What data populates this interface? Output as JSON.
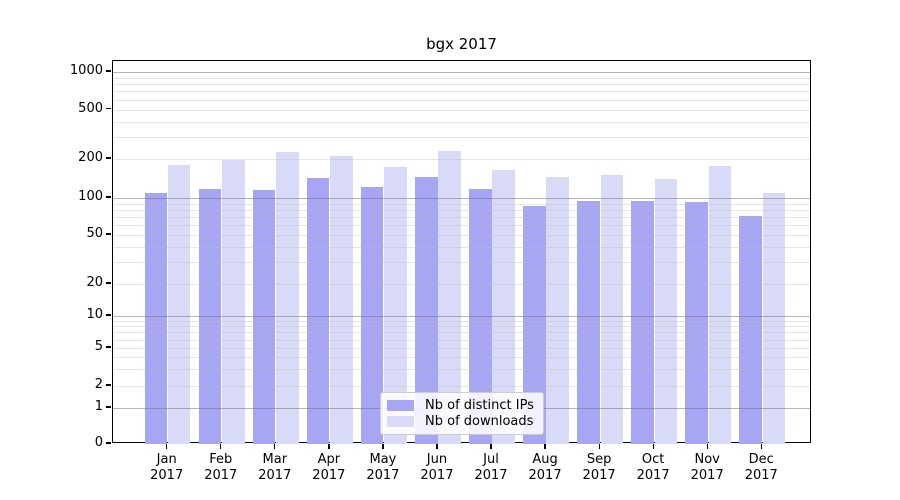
{
  "chart_data": {
    "type": "bar",
    "title": "bgx 2017",
    "categories": [
      "Jan",
      "Feb",
      "Mar",
      "Apr",
      "May",
      "Jun",
      "Jul",
      "Aug",
      "Sep",
      "Oct",
      "Nov",
      "Dec"
    ],
    "category_year": "2017",
    "series": [
      {
        "name": "Nb of distinct IPs",
        "color": "#a6a6f4",
        "values": [
          109,
          118,
          116,
          142,
          122,
          146,
          117,
          86,
          94,
          95,
          92,
          71
        ]
      },
      {
        "name": "Nb of downloads",
        "color": "#d9d9f8",
        "values": [
          181,
          196,
          229,
          213,
          174,
          232,
          164,
          145,
          150,
          139,
          176,
          110
        ]
      }
    ],
    "yscale": "symlog",
    "ylim": [
      0,
      1200
    ],
    "y_ticks": [
      0,
      1,
      2,
      5,
      10,
      20,
      50,
      100,
      200,
      500,
      1000
    ],
    "grid": true,
    "legend_position": "lower center",
    "colors": {
      "axis": "#000000",
      "major_grid": "#b0b0b0",
      "minor_grid": "#e7e7e7"
    }
  }
}
